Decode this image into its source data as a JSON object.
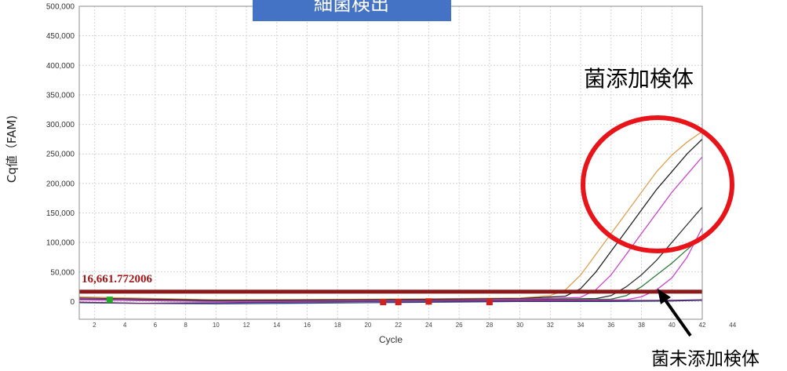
{
  "header": {
    "title": "細菌検出",
    "color": "#4472c4"
  },
  "annotations": {
    "positive_label": "菌添加検体",
    "negative_label": "菌未添加検体",
    "threshold_label": "16,661.772006"
  },
  "colors": {
    "threshold": "#8b1a1a",
    "circle": "#e8141a",
    "grid": "#d4d4d4",
    "plot_border": "#8c8c8c"
  },
  "chart_data": {
    "type": "line",
    "title": "",
    "xlabel": "Cycle",
    "ylabel": "Cq値（FAM)",
    "xlim": [
      1,
      42
    ],
    "ylim": [
      -30000,
      500000
    ],
    "x_ticks": [
      2,
      4,
      6,
      8,
      10,
      12,
      14,
      16,
      18,
      20,
      22,
      24,
      26,
      28,
      30,
      32,
      34,
      36,
      38,
      40,
      42,
      44
    ],
    "x_tick_labels": [
      "2",
      "4",
      "6",
      "8",
      "10",
      "12",
      "14",
      "16",
      "18",
      "20",
      "22",
      "24",
      "26",
      "28",
      "30",
      "32",
      "34",
      "36",
      "38",
      "40",
      "42",
      "44"
    ],
    "y_ticks": [
      0,
      50000,
      100000,
      150000,
      200000,
      250000,
      300000,
      350000,
      400000,
      450000,
      500000
    ],
    "y_tick_labels": [
      "0",
      "50,000",
      "100,000",
      "150,000",
      "200,000",
      "250,000",
      "300,000",
      "350,000",
      "400,000",
      "450,000",
      "500,000"
    ],
    "threshold": 16661.772006,
    "grid": true,
    "series": [
      {
        "color": "#e0a050",
        "x": [
          1,
          10,
          20,
          30,
          32,
          33,
          34,
          35,
          36,
          37,
          38,
          39,
          40,
          41,
          42
        ],
        "y": [
          8000,
          3000,
          4000,
          6000,
          10000,
          20000,
          45000,
          80000,
          115000,
          150000,
          185000,
          220000,
          248000,
          270000,
          288000
        ]
      },
      {
        "color": "#222222",
        "x": [
          1,
          10,
          20,
          30,
          33,
          34,
          35,
          36,
          37,
          38,
          39,
          40,
          41,
          42
        ],
        "y": [
          6000,
          2000,
          3000,
          5000,
          9000,
          22000,
          50000,
          85000,
          120000,
          155000,
          190000,
          220000,
          250000,
          275000
        ]
      },
      {
        "color": "#cc44cc",
        "x": [
          1,
          10,
          20,
          30,
          34,
          35,
          36,
          37,
          38,
          39,
          40,
          41,
          42
        ],
        "y": [
          5000,
          1000,
          2000,
          4000,
          7000,
          20000,
          45000,
          80000,
          115000,
          150000,
          185000,
          215000,
          245000
        ]
      },
      {
        "color": "#333333",
        "x": [
          1,
          10,
          20,
          30,
          35,
          36,
          37,
          38,
          39,
          40,
          41,
          42
        ],
        "y": [
          4000,
          1000,
          2000,
          3000,
          5000,
          10000,
          25000,
          45000,
          70000,
          100000,
          130000,
          160000
        ]
      },
      {
        "color": "#2a7a3a",
        "x": [
          1,
          10,
          20,
          30,
          36,
          37,
          38,
          39,
          40,
          41,
          42
        ],
        "y": [
          3000,
          0,
          1000,
          2000,
          4000,
          10000,
          25000,
          45000,
          65000,
          88000,
          110000
        ]
      },
      {
        "color": "#cc44cc",
        "x": [
          1,
          10,
          20,
          30,
          37,
          38,
          39,
          40,
          41,
          42
        ],
        "y": [
          3000,
          0,
          1000,
          2000,
          3000,
          8000,
          20000,
          40000,
          75000,
          125000
        ]
      },
      {
        "color": "#1f3c88",
        "x": [
          1,
          5,
          10,
          20,
          30,
          36,
          40,
          42
        ],
        "y": [
          -2000,
          -3000,
          -4000,
          -2000,
          0,
          0,
          1000,
          2000
        ]
      },
      {
        "color": "#6a2a6a",
        "x": [
          1,
          5,
          10,
          20,
          30,
          40,
          42
        ],
        "y": [
          -1000,
          -3000,
          -2000,
          0,
          1000,
          2000,
          3000
        ]
      }
    ],
    "markers": [
      {
        "x": 3,
        "y": 3000,
        "color": "#22aa22"
      },
      {
        "x": 21,
        "y": -1000,
        "color": "#cc2222"
      },
      {
        "x": 22,
        "y": -1000,
        "color": "#cc2222"
      },
      {
        "x": 24,
        "y": 0,
        "color": "#cc2222"
      },
      {
        "x": 28,
        "y": -1000,
        "color": "#cc2222"
      }
    ]
  }
}
